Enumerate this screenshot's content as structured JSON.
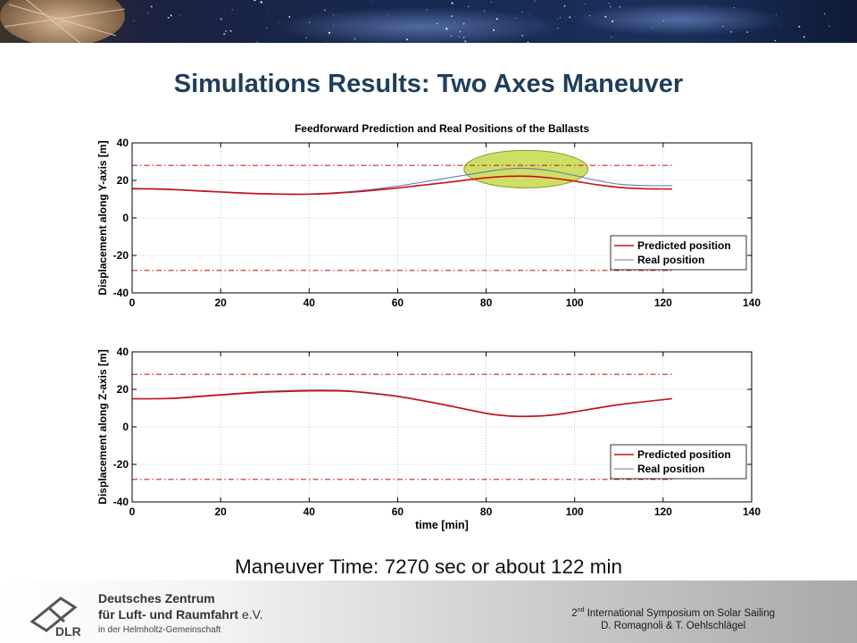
{
  "slide": {
    "title": "Simulations Results: Two Axes Maneuver",
    "caption": "Maneuver Time: 7270 sec or about 122 min"
  },
  "footer": {
    "org_line1": "Deutsches Zentrum",
    "org_line2": "für Luft- und Raumfahrt",
    "org_suffix": "e.V.",
    "org_line3": "in der Helmholtz-Gemeinschaft",
    "logo_text": "DLR",
    "symposium_ordinal": "2",
    "symposium_sup": "nd",
    "symposium_rest": "International Symposium on Solar Sailing",
    "authors": "D. Romagnoli & T. Oehlschlägel"
  },
  "chart_data": [
    {
      "type": "line",
      "title": "Feedforward Prediction and Real Positions of the Ballasts",
      "xlabel": "",
      "ylabel": "Displacement along Y-axis [m]",
      "xlim": [
        0,
        140
      ],
      "ylim": [
        -40,
        40
      ],
      "xticks": [
        0,
        20,
        40,
        60,
        80,
        100,
        120,
        140
      ],
      "yticks": [
        -40,
        -20,
        0,
        20,
        40
      ],
      "grid": true,
      "legend": "lower-right",
      "limits": {
        "values": [
          28,
          -28
        ],
        "color": "#cc2222",
        "style": "dash-dot"
      },
      "highlight": {
        "cx": 89,
        "cy": 26,
        "rx": 14,
        "ry": 10,
        "color": "#c6d94a"
      },
      "series": [
        {
          "name": "Predicted position",
          "color": "#cc1111",
          "x": [
            0,
            5,
            10,
            20,
            30,
            40,
            50,
            60,
            70,
            80,
            85,
            90,
            95,
            100,
            105,
            110,
            115,
            122
          ],
          "y": [
            15.5,
            15.4,
            15,
            13.8,
            12.8,
            12.6,
            13.8,
            16,
            18.6,
            21.4,
            22.2,
            22.2,
            21.2,
            19.6,
            17.7,
            16.3,
            15.6,
            15.4
          ]
        },
        {
          "name": "Real position",
          "color": "#6677bb",
          "x": [
            0,
            5,
            10,
            20,
            30,
            40,
            50,
            60,
            70,
            80,
            85,
            90,
            95,
            100,
            105,
            110,
            115,
            122
          ],
          "y": [
            15.8,
            15.6,
            15.2,
            14,
            13,
            12.8,
            14.2,
            17,
            20.8,
            24.6,
            26.2,
            26.3,
            25,
            22.6,
            20,
            18,
            17.3,
            17.2
          ]
        }
      ]
    },
    {
      "type": "line",
      "title": "",
      "xlabel": "time [min]",
      "ylabel": "Displacement along Z-axis [m]",
      "xlim": [
        0,
        140
      ],
      "ylim": [
        -40,
        40
      ],
      "xticks": [
        0,
        20,
        40,
        60,
        80,
        100,
        120,
        140
      ],
      "yticks": [
        -40,
        -20,
        0,
        20,
        40
      ],
      "grid": true,
      "legend": "lower-right",
      "limits": {
        "values": [
          28,
          -28
        ],
        "color": "#cc2222",
        "style": "dash-dot"
      },
      "series": [
        {
          "name": "Predicted position",
          "color": "#cc1111",
          "x": [
            0,
            5,
            10,
            20,
            30,
            40,
            45,
            50,
            60,
            70,
            80,
            85,
            90,
            95,
            100,
            110,
            122
          ],
          "y": [
            15,
            15,
            15.3,
            17,
            18.5,
            19.2,
            19.2,
            18.8,
            16.2,
            12,
            7.2,
            5.8,
            5.6,
            6.3,
            8,
            11.8,
            15
          ]
        },
        {
          "name": "Real position",
          "color": "#6677bb",
          "x": [
            0,
            5,
            10,
            20,
            30,
            40,
            45,
            50,
            60,
            70,
            80,
            85,
            90,
            95,
            100,
            110,
            122
          ],
          "y": [
            15,
            15.1,
            15.5,
            17.3,
            18.9,
            19.6,
            19.6,
            19.1,
            16.5,
            12.2,
            7.4,
            6,
            5.8,
            6.5,
            8.2,
            12,
            15.1
          ]
        }
      ]
    }
  ],
  "colors": {
    "title": "#1f3e5c",
    "limit": "#cc2222",
    "predicted": "#cc1111",
    "real": "#6677bb",
    "highlight": "#c6d94a"
  }
}
